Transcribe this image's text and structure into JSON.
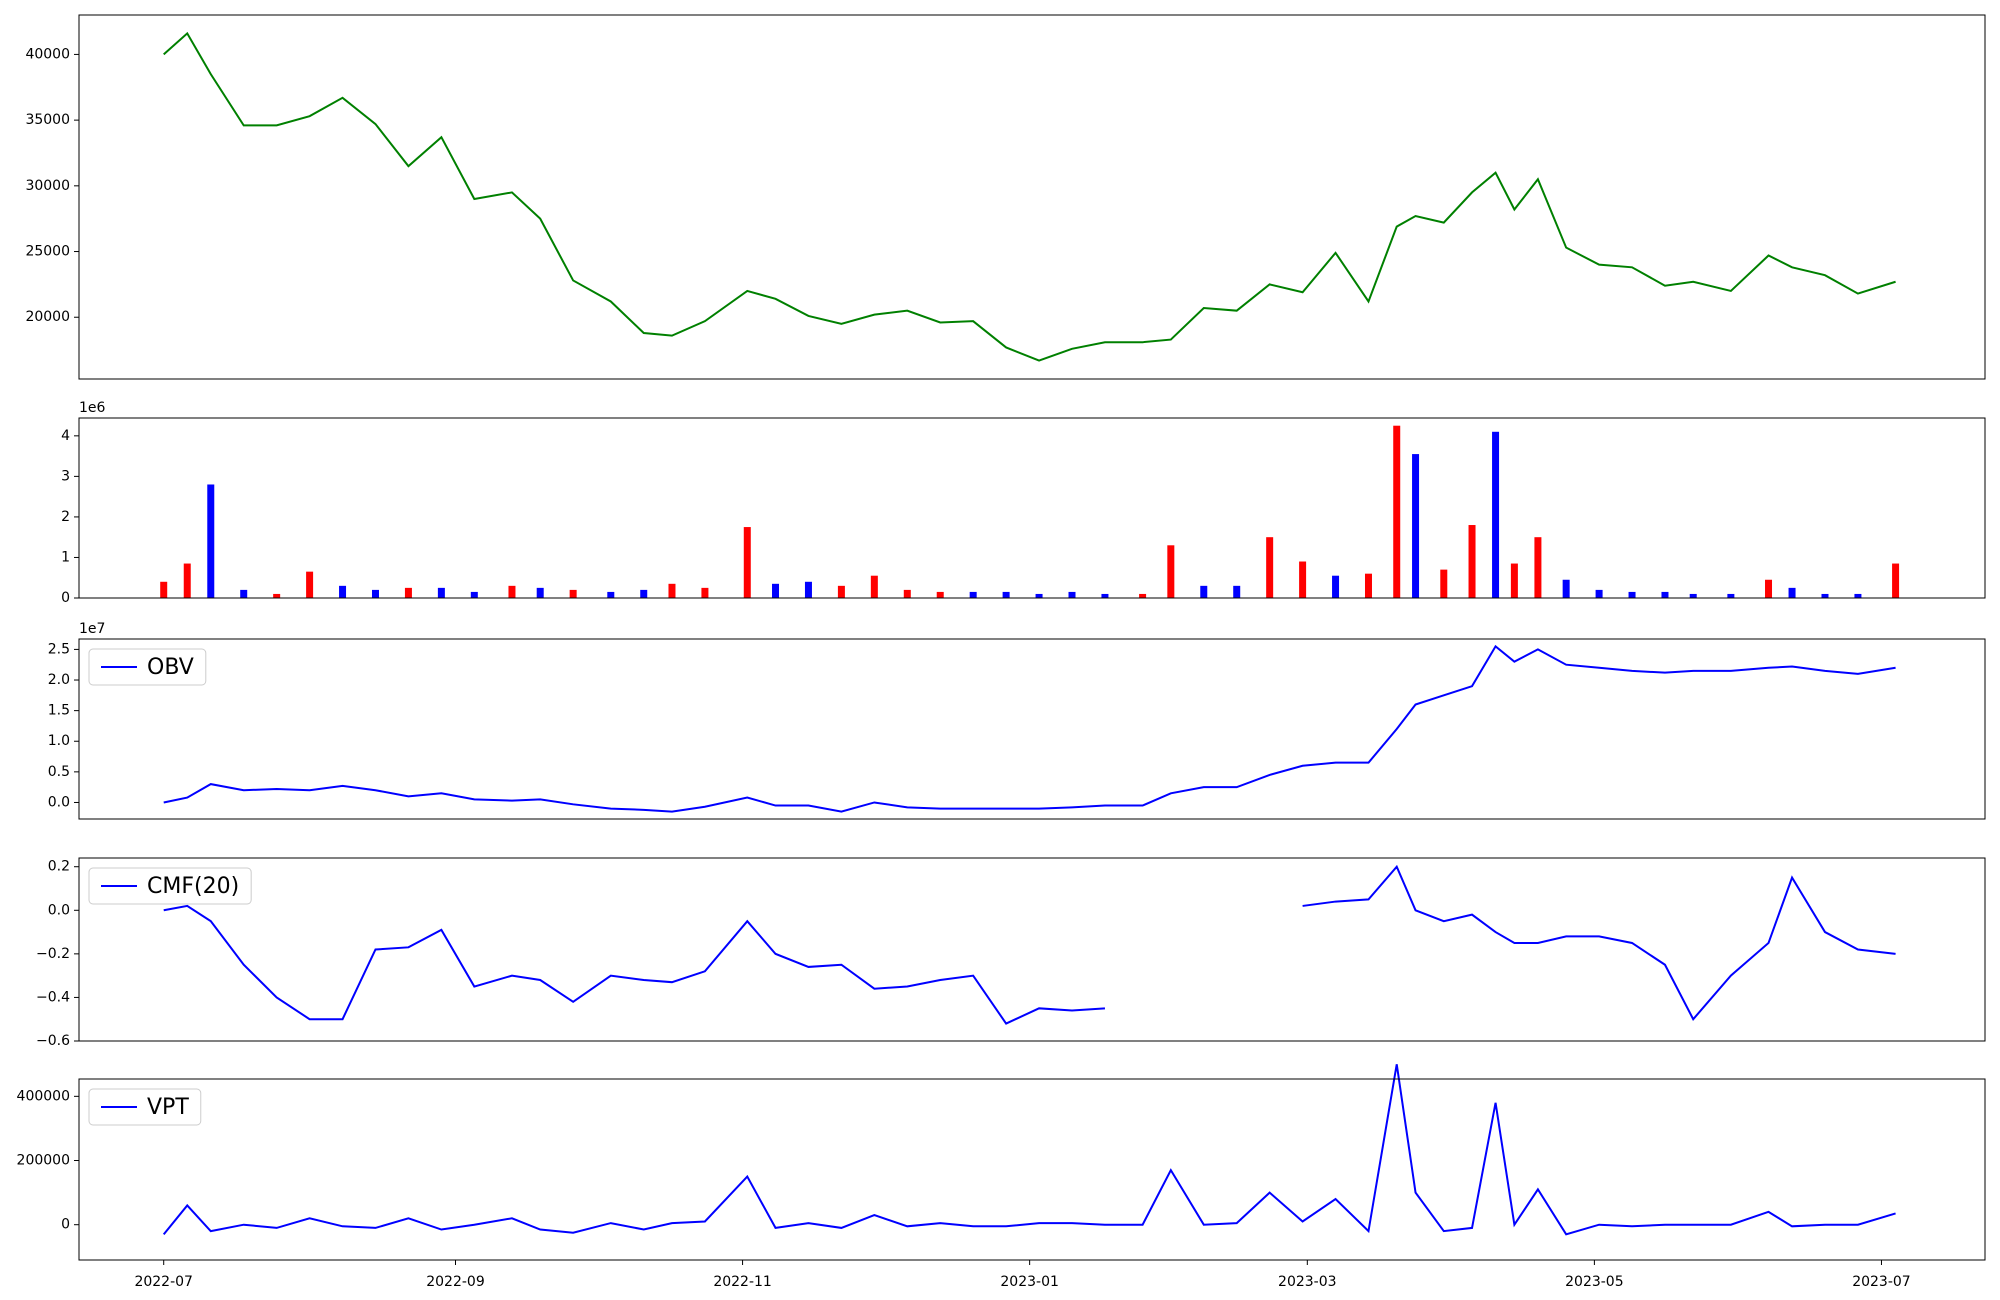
{
  "chart_data": [
    {
      "type": "line",
      "color": "#008000",
      "x": [
        "2022-07-01",
        "2022-07-06",
        "2022-07-11",
        "2022-07-18",
        "2022-07-25",
        "2022-08-01",
        "2022-08-08",
        "2022-08-15",
        "2022-08-22",
        "2022-08-29",
        "2022-09-05",
        "2022-09-13",
        "2022-09-19",
        "2022-09-26",
        "2022-10-04",
        "2022-10-11",
        "2022-10-17",
        "2022-10-24",
        "2022-11-02",
        "2022-11-08",
        "2022-11-15",
        "2022-11-22",
        "2022-11-29",
        "2022-12-06",
        "2022-12-13",
        "2022-12-20",
        "2022-12-27",
        "2023-01-03",
        "2023-01-10",
        "2023-01-17",
        "2023-01-25",
        "2023-01-31",
        "2023-02-07",
        "2023-02-14",
        "2023-02-21",
        "2023-02-28",
        "2023-03-07",
        "2023-03-14",
        "2023-03-20",
        "2023-03-24",
        "2023-03-30",
        "2023-04-05",
        "2023-04-10",
        "2023-04-14",
        "2023-04-19",
        "2023-04-25",
        "2023-05-02",
        "2023-05-09",
        "2023-05-16",
        "2023-05-22",
        "2023-05-30",
        "2023-06-07",
        "2023-06-12",
        "2023-06-19",
        "2023-06-26",
        "2023-07-04"
      ],
      "values": [
        40000,
        41600,
        38500,
        34600,
        34600,
        35300,
        36700,
        34700,
        31500,
        33700,
        29000,
        29500,
        27500,
        22800,
        21200,
        18800,
        18600,
        19700,
        22000,
        21400,
        20100,
        19500,
        20200,
        20500,
        19600,
        19700,
        17700,
        16700,
        17600,
        18100,
        18100,
        18300,
        20700,
        20500,
        22500,
        21900,
        24900,
        21200,
        26900,
        27700,
        27200,
        29500,
        31000,
        28200,
        30500,
        25300,
        24000,
        23800,
        22400,
        22700,
        22000,
        24700,
        23800,
        23200,
        21800,
        22700
      ],
      "xlim": [
        "2022-06-13",
        "2023-07-23"
      ],
      "ylim": [
        15300,
        43000
      ],
      "yticks": [
        20000,
        25000,
        30000,
        35000,
        40000
      ]
    },
    {
      "type": "bar",
      "offset_label": "1e6",
      "x": [
        "2022-07-01",
        "2022-07-06",
        "2022-07-11",
        "2022-07-18",
        "2022-07-25",
        "2022-08-01",
        "2022-08-08",
        "2022-08-15",
        "2022-08-22",
        "2022-08-29",
        "2022-09-05",
        "2022-09-13",
        "2022-09-19",
        "2022-09-26",
        "2022-10-04",
        "2022-10-11",
        "2022-10-17",
        "2022-10-24",
        "2022-11-02",
        "2022-11-08",
        "2022-11-15",
        "2022-11-22",
        "2022-11-29",
        "2022-12-06",
        "2022-12-13",
        "2022-12-20",
        "2022-12-27",
        "2023-01-03",
        "2023-01-10",
        "2023-01-17",
        "2023-01-25",
        "2023-01-31",
        "2023-02-07",
        "2023-02-14",
        "2023-02-21",
        "2023-02-28",
        "2023-03-07",
        "2023-03-14",
        "2023-03-20",
        "2023-03-24",
        "2023-03-30",
        "2023-04-05",
        "2023-04-10",
        "2023-04-14",
        "2023-04-19",
        "2023-04-25",
        "2023-05-02",
        "2023-05-09",
        "2023-05-16",
        "2023-05-22",
        "2023-05-30",
        "2023-06-07",
        "2023-06-12",
        "2023-06-19",
        "2023-06-26",
        "2023-07-04"
      ],
      "values": [
        400000,
        850000,
        2800000,
        200000,
        100000,
        650000,
        300000,
        200000,
        250000,
        250000,
        150000,
        300000,
        250000,
        200000,
        150000,
        200000,
        350000,
        250000,
        1750000,
        350000,
        400000,
        300000,
        550000,
        200000,
        150000,
        150000,
        150000,
        100000,
        150000,
        100000,
        100000,
        1300000,
        300000,
        300000,
        1500000,
        900000,
        550000,
        600000,
        4250000,
        3550000,
        700000,
        1800000,
        4100000,
        850000,
        1500000,
        450000,
        200000,
        150000,
        150000,
        100000,
        100000,
        450000,
        250000,
        100000,
        100000,
        850000
      ],
      "colors": [
        "red",
        "red",
        "blue",
        "blue",
        "red",
        "red",
        "blue",
        "blue",
        "red",
        "blue",
        "blue",
        "red",
        "blue",
        "red",
        "blue",
        "blue",
        "red",
        "red",
        "red",
        "blue",
        "blue",
        "red",
        "red",
        "red",
        "red",
        "blue",
        "blue",
        "blue",
        "blue",
        "blue",
        "red",
        "red",
        "blue",
        "blue",
        "red",
        "red",
        "blue",
        "red",
        "red",
        "blue",
        "red",
        "red",
        "blue",
        "red",
        "red",
        "blue",
        "blue",
        "blue",
        "blue",
        "blue",
        "blue",
        "red",
        "blue",
        "blue",
        "blue",
        "red"
      ],
      "xlim": [
        "2022-06-13",
        "2023-07-23"
      ],
      "ylim": [
        0,
        4440000
      ],
      "yticks": [
        {
          "value": 0,
          "label": "0"
        },
        {
          "value": 1000000,
          "label": "1"
        },
        {
          "value": 2000000,
          "label": "2"
        },
        {
          "value": 3000000,
          "label": "3"
        },
        {
          "value": 4000000,
          "label": "4"
        }
      ]
    },
    {
      "type": "line",
      "offset_label": "1e7",
      "legend": "upper left",
      "x": [
        "2022-07-01",
        "2022-07-06",
        "2022-07-11",
        "2022-07-18",
        "2022-07-25",
        "2022-08-01",
        "2022-08-08",
        "2022-08-15",
        "2022-08-22",
        "2022-08-29",
        "2022-09-05",
        "2022-09-13",
        "2022-09-19",
        "2022-09-26",
        "2022-10-04",
        "2022-10-11",
        "2022-10-17",
        "2022-10-24",
        "2022-11-02",
        "2022-11-08",
        "2022-11-15",
        "2022-11-22",
        "2022-11-29",
        "2022-12-06",
        "2022-12-13",
        "2022-12-20",
        "2022-12-27",
        "2023-01-03",
        "2023-01-10",
        "2023-01-17",
        "2023-01-25",
        "2023-01-31",
        "2023-02-07",
        "2023-02-14",
        "2023-02-21",
        "2023-02-28",
        "2023-03-07",
        "2023-03-14",
        "2023-03-20",
        "2023-03-24",
        "2023-03-30",
        "2023-04-05",
        "2023-04-10",
        "2023-04-14",
        "2023-04-19",
        "2023-04-25",
        "2023-05-02",
        "2023-05-09",
        "2023-05-16",
        "2023-05-22",
        "2023-05-30",
        "2023-06-07",
        "2023-06-12",
        "2023-06-19",
        "2023-06-26",
        "2023-07-04"
      ],
      "series": [
        {
          "name": "OBV",
          "color": "#0000ff",
          "values": [
            0,
            800000,
            3000000,
            2000000,
            2200000,
            2000000,
            2700000,
            2000000,
            1000000,
            1500000,
            500000,
            300000,
            500000,
            -300000,
            -1000000,
            -1200000,
            -1500000,
            -700000,
            800000,
            -500000,
            -500000,
            -1500000,
            0,
            -800000,
            -1000000,
            -1000000,
            -1000000,
            -1000000,
            -800000,
            -500000,
            -500000,
            1500000,
            2500000,
            2500000,
            4500000,
            6000000,
            6500000,
            6500000,
            12000000,
            16000000,
            17500000,
            19000000,
            25500000,
            23000000,
            25000000,
            22500000,
            22000000,
            21500000,
            21200000,
            21500000,
            21500000,
            22000000,
            22200000,
            21500000,
            21000000,
            22000000
          ]
        }
      ],
      "xlim": [
        "2022-06-13",
        "2023-07-23"
      ],
      "ylim": [
        -2700000,
        26700000
      ],
      "yticks": [
        {
          "value": 0,
          "label": "0.0"
        },
        {
          "value": 5000000,
          "label": "0.5"
        },
        {
          "value": 10000000,
          "label": "1.0"
        },
        {
          "value": 15000000,
          "label": "1.5"
        },
        {
          "value": 20000000,
          "label": "2.0"
        },
        {
          "value": 25000000,
          "label": "2.5"
        }
      ]
    },
    {
      "type": "line",
      "legend": "upper left",
      "x": [
        "2022-07-01",
        "2022-07-06",
        "2022-07-11",
        "2022-07-18",
        "2022-07-25",
        "2022-08-01",
        "2022-08-08",
        "2022-08-15",
        "2022-08-22",
        "2022-08-29",
        "2022-09-05",
        "2022-09-13",
        "2022-09-19",
        "2022-09-26",
        "2022-10-04",
        "2022-10-11",
        "2022-10-17",
        "2022-10-24",
        "2022-11-02",
        "2022-11-08",
        "2022-11-15",
        "2022-11-22",
        "2022-11-29",
        "2022-12-06",
        "2022-12-13",
        "2022-12-20",
        "2022-12-27",
        "2023-01-03",
        "2023-01-10",
        "2023-01-17",
        "2023-01-25",
        "2023-01-31",
        "2023-02-07",
        "2023-02-14",
        "2023-02-21",
        "2023-02-28",
        "2023-03-07",
        "2023-03-14",
        "2023-03-20",
        "2023-03-24",
        "2023-03-30",
        "2023-04-05",
        "2023-04-10",
        "2023-04-14",
        "2023-04-19",
        "2023-04-25",
        "2023-05-02",
        "2023-05-09",
        "2023-05-16",
        "2023-05-22",
        "2023-05-30",
        "2023-06-07",
        "2023-06-12",
        "2023-06-19",
        "2023-06-26",
        "2023-07-04"
      ],
      "series": [
        {
          "name": "CMF(20)",
          "color": "#0000ff",
          "values": [
            0,
            0.02,
            -0.05,
            -0.25,
            -0.4,
            -0.5,
            -0.5,
            -0.18,
            -0.17,
            -0.09,
            -0.35,
            -0.3,
            -0.32,
            -0.42,
            -0.3,
            -0.32,
            -0.33,
            -0.28,
            -0.05,
            -0.2,
            -0.26,
            -0.25,
            -0.36,
            -0.35,
            -0.32,
            -0.3,
            -0.52,
            -0.45,
            -0.46,
            -0.45,
            null,
            null,
            null,
            null,
            null,
            0.02,
            0.04,
            0.05,
            0.2,
            0,
            -0.05,
            -0.02,
            -0.1,
            -0.15,
            -0.15,
            -0.12,
            -0.12,
            -0.15,
            -0.25,
            -0.5,
            -0.3,
            -0.15,
            0.15,
            -0.1,
            -0.18,
            -0.2
          ]
        }
      ],
      "xlim": [
        "2022-06-13",
        "2023-07-23"
      ],
      "ylim": [
        -0.6,
        0.24
      ],
      "yticks": [
        {
          "value": -0.6,
          "label": "−0.6"
        },
        {
          "value": -0.4,
          "label": "−0.4"
        },
        {
          "value": -0.2,
          "label": "−0.2"
        },
        {
          "value": 0,
          "label": "0.0"
        },
        0.2
      ]
    },
    {
      "type": "line",
      "legend": "upper left",
      "x": [
        "2022-07-01",
        "2022-07-06",
        "2022-07-11",
        "2022-07-18",
        "2022-07-25",
        "2022-08-01",
        "2022-08-08",
        "2022-08-15",
        "2022-08-22",
        "2022-08-29",
        "2022-09-05",
        "2022-09-13",
        "2022-09-19",
        "2022-09-26",
        "2022-10-04",
        "2022-10-11",
        "2022-10-17",
        "2022-10-24",
        "2022-11-02",
        "2022-11-08",
        "2022-11-15",
        "2022-11-22",
        "2022-11-29",
        "2022-12-06",
        "2022-12-13",
        "2022-12-20",
        "2022-12-27",
        "2023-01-03",
        "2023-01-10",
        "2023-01-17",
        "2023-01-25",
        "2023-01-31",
        "2023-02-07",
        "2023-02-14",
        "2023-02-21",
        "2023-02-28",
        "2023-03-07",
        "2023-03-14",
        "2023-03-20",
        "2023-03-24",
        "2023-03-30",
        "2023-04-05",
        "2023-04-10",
        "2023-04-14",
        "2023-04-19",
        "2023-04-25",
        "2023-05-02",
        "2023-05-09",
        "2023-05-16",
        "2023-05-22",
        "2023-05-30",
        "2023-06-07",
        "2023-06-12",
        "2023-06-19",
        "2023-06-26",
        "2023-07-04"
      ],
      "series": [
        {
          "name": "VPT",
          "color": "#0000ff",
          "values": [
            -30000,
            60000,
            -20000,
            0,
            -10000,
            20000,
            -5000,
            -10000,
            20000,
            -15000,
            0,
            20000,
            -15000,
            -25000,
            5000,
            -15000,
            5000,
            10000,
            150000,
            -10000,
            5000,
            -10000,
            30000,
            -5000,
            5000,
            -5000,
            -5000,
            5000,
            5000,
            0,
            0,
            170000,
            0,
            5000,
            100000,
            10000,
            80000,
            -20000,
            500000,
            100000,
            -20000,
            -10000,
            380000,
            0,
            110000,
            -30000,
            0,
            -5000,
            0,
            0,
            0,
            40000,
            -5000,
            0,
            0,
            35000
          ]
        }
      ],
      "xlim": [
        "2022-06-13",
        "2023-07-23"
      ],
      "ylim": [
        -110000,
        454000
      ],
      "yticks": [
        0,
        200000,
        400000
      ],
      "xticks": [
        {
          "value": "2022-07-01",
          "label": "2022-07"
        },
        {
          "value": "2022-09-01",
          "label": "2022-09"
        },
        {
          "value": "2022-11-01",
          "label": "2022-11"
        },
        {
          "value": "2023-01-01",
          "label": "2023-01"
        },
        {
          "value": "2023-03-01",
          "label": "2023-03"
        },
        {
          "value": "2023-05-01",
          "label": "2023-05"
        },
        {
          "value": "2023-07-01",
          "label": "2023-07"
        }
      ]
    }
  ]
}
